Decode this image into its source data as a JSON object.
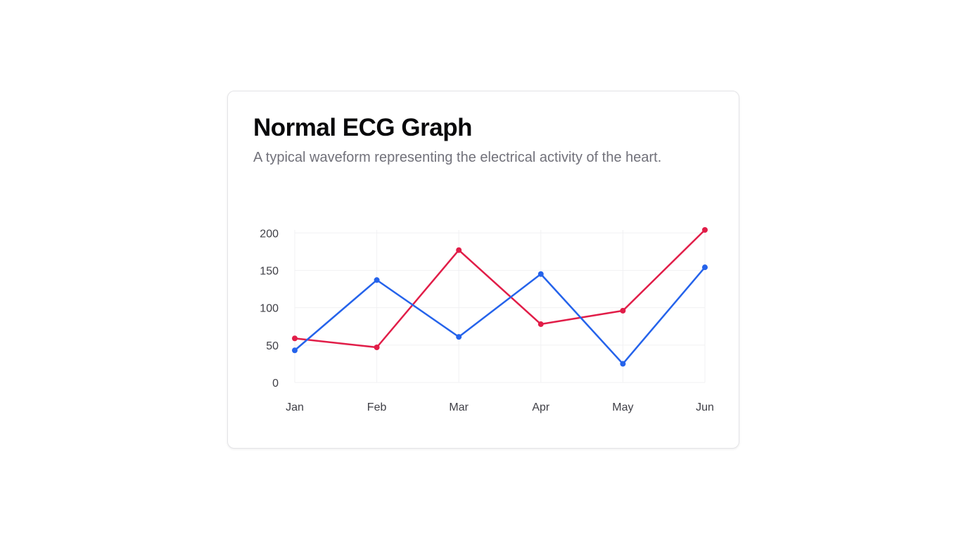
{
  "card": {
    "title": "Normal ECG Graph",
    "subtitle": "A typical waveform representing the electrical activity of the heart."
  },
  "chart_data": {
    "type": "line",
    "categories": [
      "Jan",
      "Feb",
      "Mar",
      "Apr",
      "May",
      "Jun"
    ],
    "series": [
      {
        "values": [
          59,
          47,
          177,
          78,
          96,
          204
        ],
        "color": "#e11d48"
      },
      {
        "values": [
          43,
          137,
          61,
          145,
          25,
          154
        ],
        "color": "#2563eb"
      }
    ],
    "yticks": [
      0,
      50,
      100,
      150,
      200
    ],
    "ylim": [
      0,
      204
    ],
    "grid": true,
    "legend": "none",
    "grid_color": "#f1f1f3"
  }
}
